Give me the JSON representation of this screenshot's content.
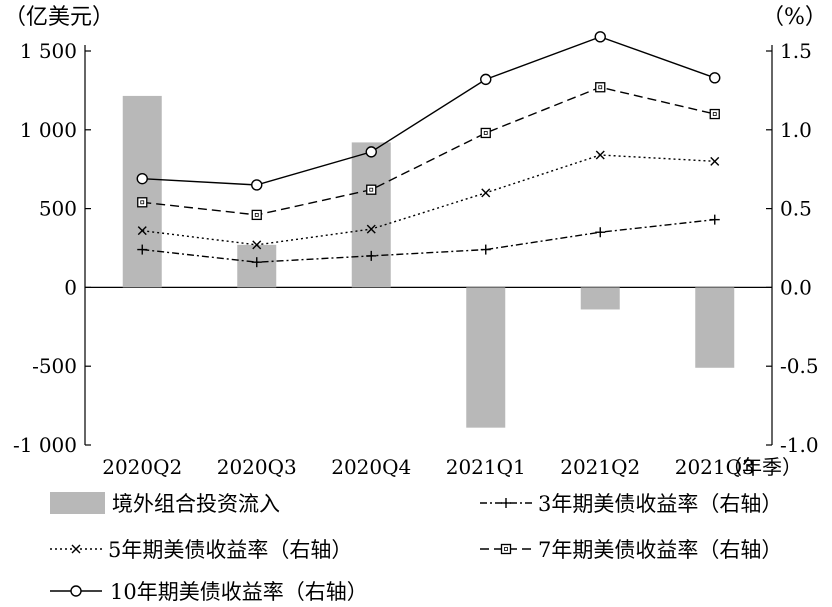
{
  "chart_data": {
    "type": "bar+line",
    "categories": [
      "2020Q2",
      "2020Q3",
      "2020Q4",
      "2021Q1",
      "2021Q2",
      "2021Q3"
    ],
    "x_unit": "（年季）",
    "left_axis": {
      "unit": "（亿美元）",
      "ylim": [
        -1000,
        1500
      ],
      "ticks": [
        {
          "value": 1500,
          "label": "1 500"
        },
        {
          "value": 1000,
          "label": "1 000"
        },
        {
          "value": 500,
          "label": "500"
        },
        {
          "value": 0,
          "label": "0"
        },
        {
          "value": -500,
          "label": "-500"
        },
        {
          "value": -1000,
          "label": "-1 000"
        }
      ]
    },
    "right_axis": {
      "unit": "（%）",
      "ylim": [
        -1.0,
        1.5
      ],
      "ticks": [
        {
          "value": 1.5,
          "label": "1.5"
        },
        {
          "value": 1.0,
          "label": "1.0"
        },
        {
          "value": 0.5,
          "label": "0.5"
        },
        {
          "value": 0.0,
          "label": "0.0"
        },
        {
          "value": -0.5,
          "label": "-0.5"
        },
        {
          "value": -1.0,
          "label": "-1.0"
        }
      ]
    },
    "bars": {
      "name": "境外组合投资流入",
      "axis": "left",
      "color": "#b8b8b8",
      "values": [
        1215,
        270,
        920,
        -890,
        -140,
        -510
      ]
    },
    "lines": [
      {
        "name": "3年期美债收益率（右轴）",
        "axis": "right",
        "marker": "plus",
        "dash": "7 3 2 3",
        "values": [
          0.24,
          0.16,
          0.2,
          0.24,
          0.35,
          0.43
        ]
      },
      {
        "name": "5年期美债收益率（右轴）",
        "axis": "right",
        "marker": "x",
        "dash": "2 3",
        "values": [
          0.36,
          0.27,
          0.37,
          0.6,
          0.84,
          0.8
        ]
      },
      {
        "name": "7年期美债收益率（右轴）",
        "axis": "right",
        "marker": "square",
        "dash": "9 5",
        "values": [
          0.54,
          0.46,
          0.62,
          0.98,
          1.27,
          1.1
        ]
      },
      {
        "name": "10年期美债收益率（右轴）",
        "axis": "right",
        "marker": "circle",
        "dash": "",
        "values": [
          0.69,
          0.65,
          0.86,
          1.32,
          1.59,
          1.33
        ]
      }
    ]
  }
}
